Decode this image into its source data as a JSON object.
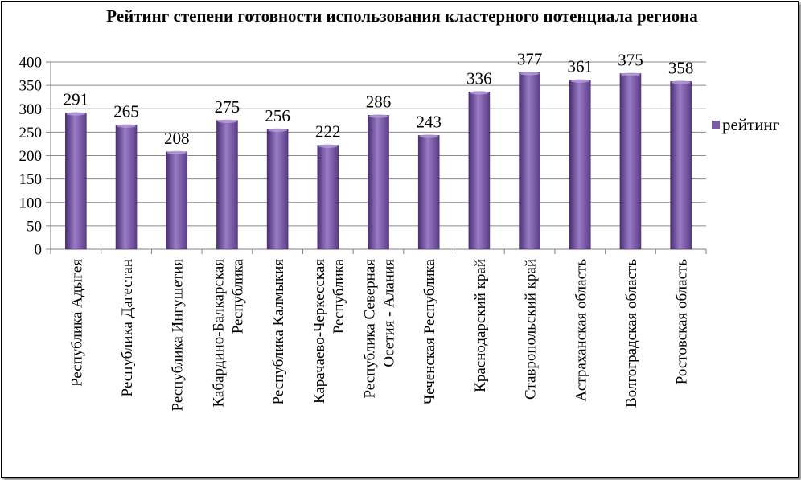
{
  "chart_data": {
    "type": "bar",
    "title": "Рейтинг степени готовности использования кластерного потенциала региона",
    "categories": [
      "Республика Адыгея",
      "Республика Дагестан",
      "Республика Ингушетия",
      "Кабардино-Балкарская Республика",
      "Республика Калмыкия",
      "Карачаево-Черкесская Республика",
      "Республика Северная Осетия - Алания",
      "Чеченская Республика",
      "Краснодарский край",
      "Ставропольский край",
      "Астраханская область",
      "Волгоградская область",
      "Ростовская область"
    ],
    "category_lines": [
      [
        "Республика Адыгея"
      ],
      [
        "Республика Дагестан"
      ],
      [
        "Республика Ингушетия"
      ],
      [
        "Кабардино-Балкарская",
        "Республика"
      ],
      [
        "Республика Калмыкия"
      ],
      [
        "Карачаево-Черкесская",
        "Республика"
      ],
      [
        "Республика Северная",
        "Осетия - Алания"
      ],
      [
        "Чеченская Республика"
      ],
      [
        "Краснодарский край"
      ],
      [
        "Ставропольский край"
      ],
      [
        "Астраханская область"
      ],
      [
        "Волгоградская область"
      ],
      [
        "Ростовская область"
      ]
    ],
    "series": [
      {
        "name": "рейтинг",
        "values": [
          291,
          265,
          208,
          275,
          256,
          222,
          286,
          243,
          336,
          377,
          361,
          375,
          358
        ],
        "color": "#7b5aa6"
      }
    ],
    "ylim": [
      0,
      400
    ],
    "yticks": [
      0,
      50,
      100,
      150,
      200,
      250,
      300,
      350,
      400
    ],
    "xlabel": "",
    "ylabel": "",
    "grid": true,
    "legend": "right",
    "data_labels": true
  }
}
